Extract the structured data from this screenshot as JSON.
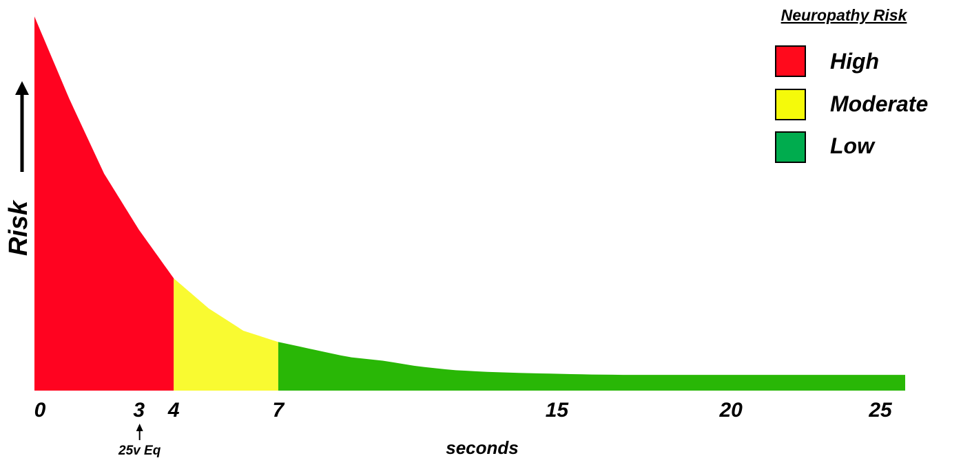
{
  "chart_data": {
    "type": "area",
    "title": "",
    "xlabel": "seconds",
    "ylabel": "Risk",
    "x_ticks": [
      0,
      3,
      4,
      7,
      15,
      20,
      25
    ],
    "xlim": [
      0,
      25
    ],
    "ylim": [
      0,
      1
    ],
    "grid": false,
    "y_axis_arrow": true,
    "curve": {
      "x": [
        0,
        1,
        2,
        3,
        4,
        5,
        6,
        7,
        8,
        9,
        10,
        11,
        12,
        13,
        14,
        15,
        16,
        17,
        18,
        19,
        20,
        21,
        22,
        23,
        24,
        25
      ],
      "y": [
        1.0,
        0.78,
        0.58,
        0.43,
        0.3,
        0.22,
        0.16,
        0.13,
        0.11,
        0.09,
        0.08,
        0.065,
        0.055,
        0.05,
        0.047,
        0.045,
        0.043,
        0.042,
        0.042,
        0.042,
        0.042,
        0.042,
        0.042,
        0.042,
        0.042,
        0.042
      ]
    },
    "bands": [
      {
        "name": "High",
        "x_start": 0,
        "x_end": 4,
        "color": "#ff0320"
      },
      {
        "name": "Moderate",
        "x_start": 4,
        "x_end": 7,
        "color": "#f9fa31"
      },
      {
        "name": "Low",
        "x_start": 7,
        "x_end": 25,
        "color": "#29b706"
      }
    ],
    "annotations": [
      {
        "text": "25v Eq",
        "x": 3,
        "arrow": "up"
      }
    ],
    "legend": {
      "title": "Neuropathy Risk",
      "placement": "top-right",
      "items": [
        {
          "label": "High",
          "color": "#ff0a1c"
        },
        {
          "label": "Moderate",
          "color": "#f5fa0a"
        },
        {
          "label": "Low",
          "color": "#00ac4e"
        }
      ]
    }
  }
}
